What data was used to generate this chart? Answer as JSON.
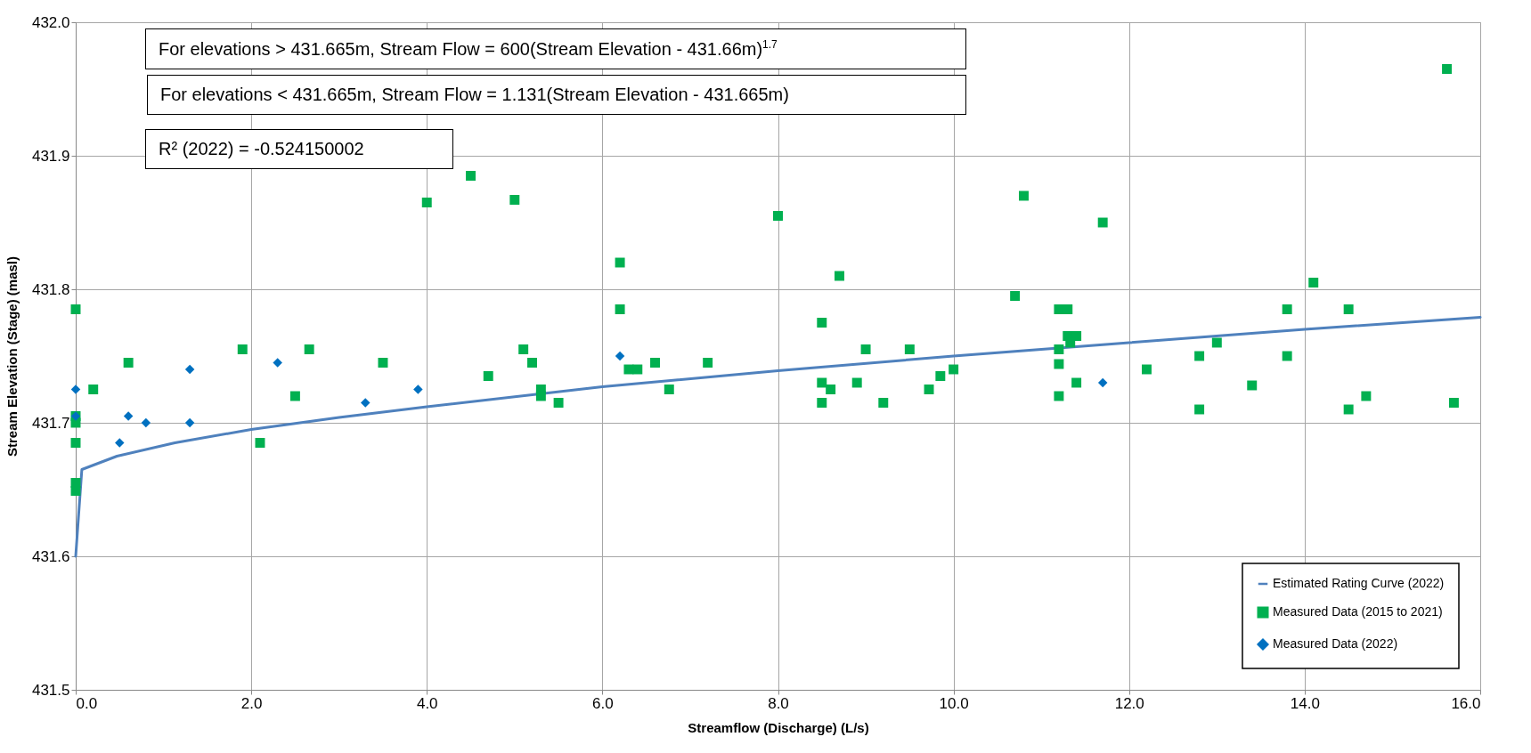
{
  "chart_data": {
    "type": "scatter",
    "xlabel": "Streamflow (Discharge) (L/s)",
    "ylabel": "Stream Elevation (Stage) (masl)",
    "xlim": [
      0,
      16
    ],
    "ylim": [
      431.5,
      432.0
    ],
    "xticks": [
      {
        "value": 0,
        "label": "0.0"
      },
      {
        "value": 2,
        "label": "2.0"
      },
      {
        "value": 4,
        "label": "4.0"
      },
      {
        "value": 6,
        "label": "6.0"
      },
      {
        "value": 8,
        "label": "8.0"
      },
      {
        "value": 10,
        "label": "10.0"
      },
      {
        "value": 12,
        "label": "12.0"
      },
      {
        "value": 14,
        "label": "14.0"
      },
      {
        "value": 16,
        "label": "16.0"
      }
    ],
    "yticks": [
      431.5,
      431.6,
      431.7,
      431.8,
      431.9,
      {
        "value": 432,
        "label": "432.0"
      }
    ],
    "grid": true,
    "legend": "bottom right",
    "annotations": [
      "For elevations > 431.665m, Stream Flow = 600(Stream Elevation - 431.66m)$^{1.7}$",
      "For elevations < 431.665m, Stream Flow = 1.131(Stream Elevation - 431.665m)",
      "R² (2022) = -0.524150002"
    ],
    "series": [
      {
        "name": "Estimated Rating Curve (2022)",
        "type": "line",
        "color": "#4f81bd",
        "marker": "none",
        "x": [
          0,
          0.07,
          0.47,
          1.13,
          2,
          3,
          4,
          6,
          8,
          10,
          12,
          14,
          16
        ],
        "values": [
          431.6,
          431.665,
          431.675,
          431.685,
          431.695,
          431.704,
          431.712,
          431.727,
          431.739,
          431.75,
          431.76,
          431.77,
          431.779
        ]
      },
      {
        "name": "Measured Data (2015 to 2021)",
        "type": "scatter",
        "color": "#00b050",
        "marker": "square",
        "x": [
          0,
          0,
          0,
          0,
          0,
          0,
          0.2,
          0.6,
          1.9,
          2.1,
          2.5,
          2.66,
          3.5,
          4.0,
          4.5,
          5.0,
          6.2,
          8.0,
          8.7,
          6.2,
          8.5,
          5.1,
          5.2,
          4.7,
          5.3,
          5.3,
          5.5,
          6.3,
          6.4,
          6.6,
          6.76,
          7.2,
          8.5,
          8.6,
          8.5,
          9.0,
          8.9,
          9.2,
          9.5,
          9.72,
          9.85,
          10.0,
          15.62,
          10.8,
          11.7,
          14.1,
          10.7,
          11.2,
          11.3,
          13.8,
          14.5,
          11.3,
          11.4,
          11.33,
          11.2,
          11.2,
          11.4,
          11.2,
          12.2,
          12.8,
          12.8,
          13.0,
          13.4,
          13.8,
          14.5,
          14.7,
          15.7
        ],
        "values": [
          431.785,
          431.705,
          431.7,
          431.685,
          431.655,
          431.649,
          431.725,
          431.745,
          431.755,
          431.685,
          431.72,
          431.755,
          431.745,
          431.865,
          431.885,
          431.867,
          431.82,
          431.855,
          431.81,
          431.785,
          431.775,
          431.755,
          431.745,
          431.735,
          431.725,
          431.72,
          431.715,
          431.74,
          431.74,
          431.745,
          431.725,
          431.745,
          431.73,
          431.725,
          431.715,
          431.755,
          431.73,
          431.715,
          431.755,
          431.725,
          431.735,
          431.74,
          431.965,
          431.87,
          431.85,
          431.805,
          431.795,
          431.785,
          431.785,
          431.785,
          431.785,
          431.765,
          431.765,
          431.76,
          431.755,
          431.744,
          431.73,
          431.72,
          431.74,
          431.75,
          431.71,
          431.76,
          431.728,
          431.75,
          431.71,
          431.72,
          431.715
        ]
      },
      {
        "name": "Measured Data (2022)",
        "type": "scatter",
        "color": "#0070c0",
        "marker": "diamond",
        "x": [
          0,
          0,
          0.5,
          0.6,
          0.8,
          1.3,
          1.3,
          2.3,
          3.3,
          3.9,
          6.2,
          11.7
        ],
        "values": [
          431.725,
          431.705,
          431.685,
          431.705,
          431.7,
          431.74,
          431.7,
          431.745,
          431.715,
          431.725,
          431.75,
          431.73
        ]
      }
    ]
  }
}
